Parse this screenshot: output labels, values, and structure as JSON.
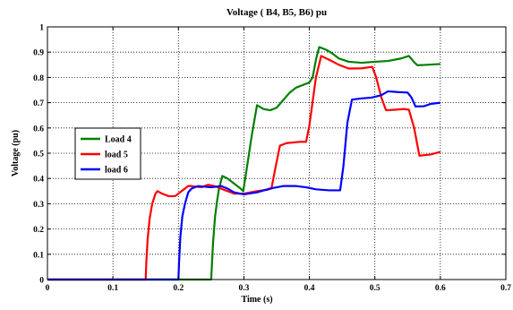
{
  "chart_data": {
    "type": "line",
    "title": "Voltage ( B4, B5, B6) pu",
    "xlabel": "Time (s)",
    "ylabel": "Voltage (pu)",
    "xlim": [
      0,
      0.7
    ],
    "ylim": [
      0,
      1
    ],
    "xticks": [
      0,
      0.1,
      0.2,
      0.3,
      0.4,
      0.5,
      0.6,
      0.7
    ],
    "xtick_labels": [
      "0",
      "0.1",
      "0.2",
      "0.3",
      "0.4",
      "0.5",
      "0.6",
      "0.7"
    ],
    "yticks": [
      0,
      0.1,
      0.2,
      0.3,
      0.4,
      0.5,
      0.6,
      0.7,
      0.8,
      0.9,
      1
    ],
    "ytick_labels": [
      "0",
      "0.1",
      "0.2",
      "0.3",
      "0.4",
      "0.5",
      "0.6",
      "0.7",
      "0.8",
      "0.9",
      "1"
    ],
    "grid": true,
    "grid_style": "dotted",
    "legend_position": "middle-left",
    "series": [
      {
        "name": "Load 4",
        "color": "#008000",
        "points": [
          [
            0,
            0
          ],
          [
            0.25,
            0
          ],
          [
            0.251,
            0.05
          ],
          [
            0.253,
            0.15
          ],
          [
            0.256,
            0.25
          ],
          [
            0.259,
            0.31
          ],
          [
            0.262,
            0.36
          ],
          [
            0.267,
            0.41
          ],
          [
            0.275,
            0.4
          ],
          [
            0.285,
            0.38
          ],
          [
            0.295,
            0.36
          ],
          [
            0.299,
            0.35
          ],
          [
            0.305,
            0.45
          ],
          [
            0.312,
            0.57
          ],
          [
            0.32,
            0.69
          ],
          [
            0.33,
            0.675
          ],
          [
            0.34,
            0.67
          ],
          [
            0.35,
            0.68
          ],
          [
            0.36,
            0.71
          ],
          [
            0.37,
            0.74
          ],
          [
            0.38,
            0.76
          ],
          [
            0.39,
            0.77
          ],
          [
            0.4,
            0.78
          ],
          [
            0.405,
            0.8
          ],
          [
            0.41,
            0.87
          ],
          [
            0.415,
            0.92
          ],
          [
            0.425,
            0.91
          ],
          [
            0.435,
            0.895
          ],
          [
            0.445,
            0.875
          ],
          [
            0.46,
            0.862
          ],
          [
            0.48,
            0.858
          ],
          [
            0.5,
            0.862
          ],
          [
            0.52,
            0.865
          ],
          [
            0.54,
            0.875
          ],
          [
            0.552,
            0.885
          ],
          [
            0.56,
            0.86
          ],
          [
            0.565,
            0.848
          ],
          [
            0.58,
            0.85
          ],
          [
            0.6,
            0.853
          ]
        ]
      },
      {
        "name": "load 5",
        "color": "#ff0000",
        "points": [
          [
            0,
            0
          ],
          [
            0.15,
            0
          ],
          [
            0.151,
            0.07
          ],
          [
            0.153,
            0.16
          ],
          [
            0.156,
            0.24
          ],
          [
            0.16,
            0.3
          ],
          [
            0.165,
            0.34
          ],
          [
            0.168,
            0.35
          ],
          [
            0.175,
            0.34
          ],
          [
            0.185,
            0.33
          ],
          [
            0.195,
            0.33
          ],
          [
            0.205,
            0.35
          ],
          [
            0.215,
            0.37
          ],
          [
            0.22,
            0.37
          ],
          [
            0.235,
            0.365
          ],
          [
            0.245,
            0.375
          ],
          [
            0.255,
            0.37
          ],
          [
            0.265,
            0.36
          ],
          [
            0.275,
            0.35
          ],
          [
            0.285,
            0.34
          ],
          [
            0.3,
            0.34
          ],
          [
            0.32,
            0.35
          ],
          [
            0.335,
            0.355
          ],
          [
            0.342,
            0.36
          ],
          [
            0.348,
            0.44
          ],
          [
            0.355,
            0.53
          ],
          [
            0.365,
            0.54
          ],
          [
            0.385,
            0.545
          ],
          [
            0.395,
            0.545
          ],
          [
            0.4,
            0.61
          ],
          [
            0.41,
            0.8
          ],
          [
            0.418,
            0.885
          ],
          [
            0.43,
            0.87
          ],
          [
            0.445,
            0.85
          ],
          [
            0.46,
            0.835
          ],
          [
            0.48,
            0.836
          ],
          [
            0.496,
            0.842
          ],
          [
            0.502,
            0.8
          ],
          [
            0.51,
            0.72
          ],
          [
            0.517,
            0.67
          ],
          [
            0.53,
            0.672
          ],
          [
            0.545,
            0.675
          ],
          [
            0.552,
            0.672
          ],
          [
            0.56,
            0.6
          ],
          [
            0.568,
            0.49
          ],
          [
            0.585,
            0.495
          ],
          [
            0.6,
            0.505
          ]
        ]
      },
      {
        "name": "load 6",
        "color": "#0000ff",
        "points": [
          [
            0,
            0
          ],
          [
            0.2,
            0
          ],
          [
            0.201,
            0.07
          ],
          [
            0.203,
            0.17
          ],
          [
            0.206,
            0.25
          ],
          [
            0.21,
            0.3
          ],
          [
            0.215,
            0.345
          ],
          [
            0.22,
            0.36
          ],
          [
            0.23,
            0.37
          ],
          [
            0.25,
            0.365
          ],
          [
            0.265,
            0.37
          ],
          [
            0.275,
            0.36
          ],
          [
            0.285,
            0.345
          ],
          [
            0.3,
            0.337
          ],
          [
            0.32,
            0.345
          ],
          [
            0.34,
            0.36
          ],
          [
            0.36,
            0.37
          ],
          [
            0.38,
            0.37
          ],
          [
            0.395,
            0.365
          ],
          [
            0.41,
            0.357
          ],
          [
            0.43,
            0.353
          ],
          [
            0.447,
            0.353
          ],
          [
            0.452,
            0.45
          ],
          [
            0.458,
            0.62
          ],
          [
            0.465,
            0.712
          ],
          [
            0.48,
            0.717
          ],
          [
            0.495,
            0.72
          ],
          [
            0.51,
            0.73
          ],
          [
            0.52,
            0.745
          ],
          [
            0.535,
            0.742
          ],
          [
            0.55,
            0.74
          ],
          [
            0.556,
            0.72
          ],
          [
            0.562,
            0.685
          ],
          [
            0.575,
            0.686
          ],
          [
            0.585,
            0.695
          ],
          [
            0.6,
            0.7
          ]
        ]
      }
    ]
  }
}
